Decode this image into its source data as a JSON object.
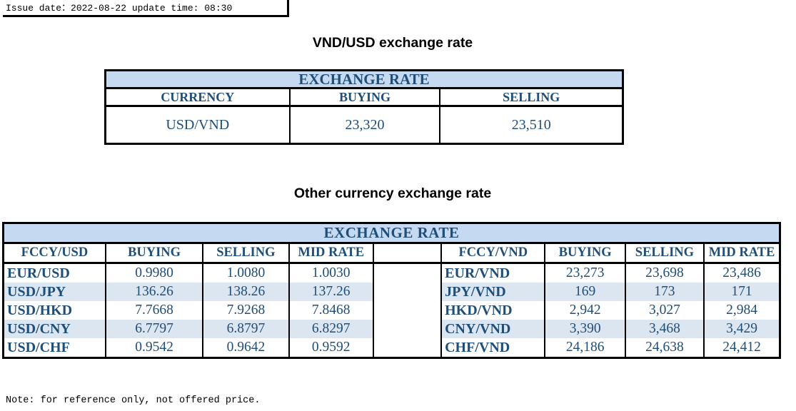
{
  "issue": "Issue date：2022-08-22 update time: 08:30",
  "heading_vnd": "VND/USD exchange rate",
  "vnd_table": {
    "title": "EXCHANGE RATE",
    "headers": [
      "CURRENCY",
      "BUYING",
      "SELLING"
    ],
    "row": [
      "USD/VND",
      "23,320",
      "23,510"
    ]
  },
  "heading_other": "Other currency exchange rate",
  "other_table": {
    "title": "EXCHANGE  RATE",
    "left_headers": [
      "FCCY/USD",
      "BUYING",
      "SELLING",
      "MID RATE"
    ],
    "right_headers": [
      "FCCY/VND",
      "BUYING",
      "SELLING",
      "MID RATE"
    ],
    "rows": [
      {
        "lpair": "EUR/USD",
        "lbuy": "0.9980",
        "lsell": "1.0080",
        "lmid": "1.0030",
        "rpair": "EUR/VND",
        "rbuy": "23,273",
        "rsell": "23,698",
        "rmid": "23,486"
      },
      {
        "lpair": "USD/JPY",
        "lbuy": "136.26",
        "lsell": "138.26",
        "lmid": "137.26",
        "rpair": "JPY/VND",
        "rbuy": "169",
        "rsell": "173",
        "rmid": "171"
      },
      {
        "lpair": "USD/HKD",
        "lbuy": "7.7668",
        "lsell": "7.9268",
        "lmid": "7.8468",
        "rpair": "HKD/VND",
        "rbuy": "2,942",
        "rsell": "3,027",
        "rmid": "2,984"
      },
      {
        "lpair": "USD/CNY",
        "lbuy": "6.7797",
        "lsell": "6.8797",
        "lmid": "6.8297",
        "rpair": "CNY/VND",
        "rbuy": "3,390",
        "rsell": "3,468",
        "rmid": "3,429"
      },
      {
        "lpair": "USD/CHF",
        "lbuy": "0.9542",
        "lsell": "0.9642",
        "lmid": "0.9592",
        "rpair": "CHF/VND",
        "rbuy": "24,186",
        "rsell": "24,638",
        "rmid": "24,412"
      }
    ]
  },
  "note": "Note: for reference only, not offered price.",
  "colors": {
    "text_blue": "#1f4e79",
    "header_fill": "#c5d9f1",
    "stripe_fill": "#dce6f1"
  }
}
